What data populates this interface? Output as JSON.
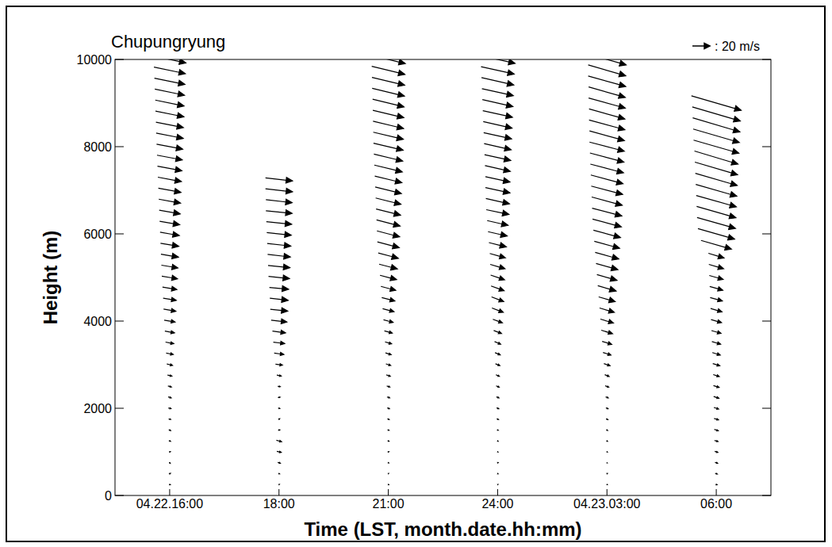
{
  "chart_data": {
    "type": "vector",
    "title": "Chupungryung",
    "x_label": "Time (LST, month.date.hh:mm)",
    "y_label": "Height (m)",
    "categories": [
      "04.22.16:00",
      "18:00",
      "21:00",
      "24:00",
      "04.23.03:00",
      "06:00"
    ],
    "ylim": [
      0,
      10000
    ],
    "yticks": [
      0,
      2000,
      4000,
      6000,
      8000,
      10000
    ],
    "reference_vector": {
      "value": 20,
      "label": ": 20 m/s"
    },
    "color": "#000000",
    "profiles": [
      {
        "height": [
          250,
          500,
          750,
          1000,
          1250,
          1500,
          1750,
          2000,
          2250,
          2500,
          2750,
          3000,
          3250,
          3500,
          3750,
          4000,
          4250,
          4500,
          4750,
          5000,
          5250,
          5500,
          5750,
          6000,
          6250,
          6500,
          6750,
          7000,
          7250,
          7500,
          7750,
          8000,
          8250,
          8500,
          8750,
          9000,
          9250,
          9500,
          9750,
          10000
        ],
        "u": [
          1.5,
          1.8,
          1.2,
          1.5,
          2,
          2.2,
          2.5,
          3,
          3.5,
          4,
          5,
          6.5,
          8,
          9.5,
          11,
          12.5,
          14,
          15,
          16.5,
          18,
          19,
          20,
          21,
          22,
          23,
          24,
          25,
          26,
          27,
          28,
          29,
          30,
          31,
          31.5,
          32.5,
          33,
          34,
          35,
          36,
          37
        ],
        "v": [
          -0.5,
          0.8,
          -1,
          0.5,
          -0.8,
          -1,
          -0.5,
          -0.8,
          -1,
          -1,
          -1.2,
          -1.5,
          -1.5,
          -1.8,
          -2,
          -2.2,
          -2.4,
          -2.5,
          -2.8,
          -3,
          -3.2,
          -3.4,
          -3.5,
          -3.8,
          -4,
          -4.2,
          -4.5,
          -4.8,
          -5,
          -5.2,
          -5.5,
          -5.8,
          -6,
          -6.2,
          -6.5,
          -6.8,
          -7,
          -7.2,
          -7.5,
          -7.8
        ]
      },
      {
        "height": [
          250,
          500,
          750,
          1000,
          1250,
          1500,
          1750,
          2000,
          2250,
          2500,
          2750,
          3000,
          3250,
          3500,
          3750,
          4000,
          4250,
          4500,
          4750,
          5000,
          5250,
          5500,
          5750,
          6000,
          6250,
          6500,
          6750,
          7000,
          7250
        ],
        "u": [
          1,
          1.5,
          3,
          5,
          6,
          2,
          1.5,
          2,
          2.5,
          3,
          5,
          8,
          11,
          13,
          15,
          18,
          20,
          21,
          22,
          24,
          25,
          26,
          27,
          28,
          29,
          30,
          30,
          31,
          31
        ],
        "v": [
          0.5,
          -0.5,
          -1,
          -1,
          -1.5,
          0.5,
          0.8,
          -0.5,
          0.5,
          -0.5,
          -1,
          -1,
          -1.5,
          -1.5,
          -2,
          -2,
          -2,
          -2.5,
          -2,
          -2.5,
          -2.5,
          -3,
          -3,
          -3,
          -3,
          -3,
          -3.5,
          -3.5,
          -3.5
        ]
      },
      {
        "height": [
          250,
          500,
          750,
          1000,
          1250,
          1500,
          1750,
          2000,
          2250,
          2500,
          2750,
          3000,
          3250,
          3500,
          3750,
          4000,
          4250,
          4500,
          4750,
          5000,
          5250,
          5500,
          5750,
          6000,
          6250,
          6500,
          6750,
          7000,
          7250,
          7500,
          7750,
          8000,
          8250,
          8500,
          8750,
          9000,
          9250,
          9500,
          9750,
          10000
        ],
        "u": [
          1,
          0.8,
          1.2,
          1.5,
          1.5,
          1.8,
          2,
          2.5,
          3,
          3.5,
          4.5,
          5.5,
          6.5,
          7.5,
          9,
          11,
          13,
          15,
          17,
          19,
          21,
          23,
          25,
          26,
          27,
          28,
          29,
          30,
          31,
          32,
          33,
          34,
          34.5,
          35,
          35.5,
          36,
          37,
          37.5,
          38,
          39
        ],
        "v": [
          -0.3,
          0.5,
          -0.5,
          0.3,
          -0.6,
          -0.5,
          -0.8,
          -1,
          -1,
          -1.2,
          -1.5,
          -1.8,
          -2,
          -2.2,
          -2.5,
          -3,
          -3.5,
          -4,
          -4.5,
          -5,
          -5.5,
          -6,
          -6.5,
          -6.8,
          -7,
          -7,
          -7.2,
          -7.5,
          -7.5,
          -7.8,
          -8,
          -8,
          -8.2,
          -8.5,
          -8.5,
          -8.8,
          -9,
          -9,
          -9.2,
          -9.5
        ]
      },
      {
        "height": [
          250,
          500,
          750,
          1000,
          1250,
          1500,
          1750,
          2000,
          2250,
          2500,
          2750,
          3000,
          3250,
          3500,
          3750,
          4000,
          4250,
          4500,
          4750,
          5000,
          5250,
          5500,
          5750,
          6000,
          6250,
          6500,
          6750,
          7000,
          7250,
          7500,
          7750,
          8000,
          8250,
          8500,
          8750,
          9000,
          9250,
          9500,
          9750,
          10000
        ],
        "u": [
          0.8,
          1,
          1.2,
          0.8,
          1,
          1.5,
          2,
          2.5,
          3,
          3.5,
          4,
          5,
          6,
          7,
          9,
          11,
          13,
          14,
          15,
          16,
          17,
          18,
          20,
          22,
          24,
          26,
          27,
          28,
          28,
          29,
          30,
          31,
          32,
          33,
          34,
          35,
          36,
          37,
          38,
          40
        ],
        "v": [
          0.3,
          -0.4,
          0.5,
          -0.5,
          -0.6,
          -0.5,
          -0.8,
          -1,
          -1.2,
          -1.5,
          -1.8,
          -2,
          -2.5,
          -3,
          -3.5,
          -4,
          -5,
          -5.5,
          -5.5,
          -5.5,
          -5,
          -5,
          -5,
          -5,
          -5.5,
          -5.5,
          -6,
          -6,
          -6,
          -6.5,
          -6.5,
          -7,
          -7,
          -7.5,
          -7.5,
          -8,
          -8,
          -8.5,
          -8.5,
          -9
        ]
      },
      {
        "height": [
          250,
          500,
          750,
          1000,
          1250,
          1500,
          1750,
          2000,
          2250,
          2500,
          2750,
          3000,
          3250,
          3500,
          3750,
          4000,
          4250,
          4500,
          4750,
          5000,
          5250,
          5500,
          5750,
          6000,
          6250,
          6500,
          6750,
          7000,
          7250,
          7500,
          7750,
          8000,
          8250,
          8500,
          8750,
          9000,
          9250,
          9500,
          9750,
          10000
        ],
        "u": [
          0.8,
          1,
          0.6,
          1,
          1.2,
          1.5,
          2,
          2.5,
          3,
          4,
          5,
          7,
          9,
          11,
          13,
          15,
          17,
          19,
          21,
          23,
          25,
          27,
          29,
          31,
          33,
          34,
          35,
          36,
          37,
          38,
          39,
          40,
          40,
          41,
          41,
          42,
          42,
          43,
          43,
          44
        ],
        "v": [
          -0.3,
          0.4,
          -0.5,
          -0.5,
          -0.6,
          -0.8,
          -1,
          -1,
          -1.2,
          -1.5,
          -2,
          -2.5,
          -3,
          -3.5,
          -4,
          -4.5,
          -5,
          -5.5,
          -6,
          -6.5,
          -7,
          -7.5,
          -8,
          -8.5,
          -9,
          -9,
          -9.5,
          -9.5,
          -10,
          -10,
          -10.5,
          -10.5,
          -11,
          -11,
          -11.5,
          -11.5,
          -12,
          -12,
          -12.5,
          -12.5
        ]
      },
      {
        "height": [
          250,
          500,
          750,
          1000,
          1250,
          1500,
          1750,
          2000,
          2250,
          2500,
          2750,
          3000,
          3250,
          3500,
          3750,
          4000,
          4250,
          4500,
          4750,
          5000,
          5250,
          5500,
          5750,
          6000,
          6250,
          6500,
          6750,
          7000,
          7250,
          7500,
          7750,
          8000,
          8250,
          8500,
          8750,
          9000
        ],
        "u": [
          2,
          2.5,
          3,
          3.5,
          4,
          4.5,
          5,
          5.5,
          6,
          6.5,
          7,
          8,
          9,
          10,
          11,
          12,
          13,
          14,
          15,
          16,
          17,
          18,
          35,
          42,
          44,
          45,
          46,
          47,
          48,
          49,
          50,
          52,
          53,
          54,
          55,
          57
        ],
        "v": [
          -0.5,
          -0.8,
          -1,
          -1,
          -1.2,
          -1.5,
          -1.5,
          -1.8,
          -2,
          -2,
          -2.2,
          -2.5,
          -2.8,
          -3,
          -3.2,
          -3.5,
          -3.8,
          -4,
          -4.2,
          -4.5,
          -5,
          -5.5,
          -10,
          -12,
          -12.5,
          -13,
          -13,
          -13.5,
          -14,
          -14.5,
          -15,
          -15,
          -15.5,
          -16,
          -16,
          -16.5
        ]
      }
    ]
  }
}
